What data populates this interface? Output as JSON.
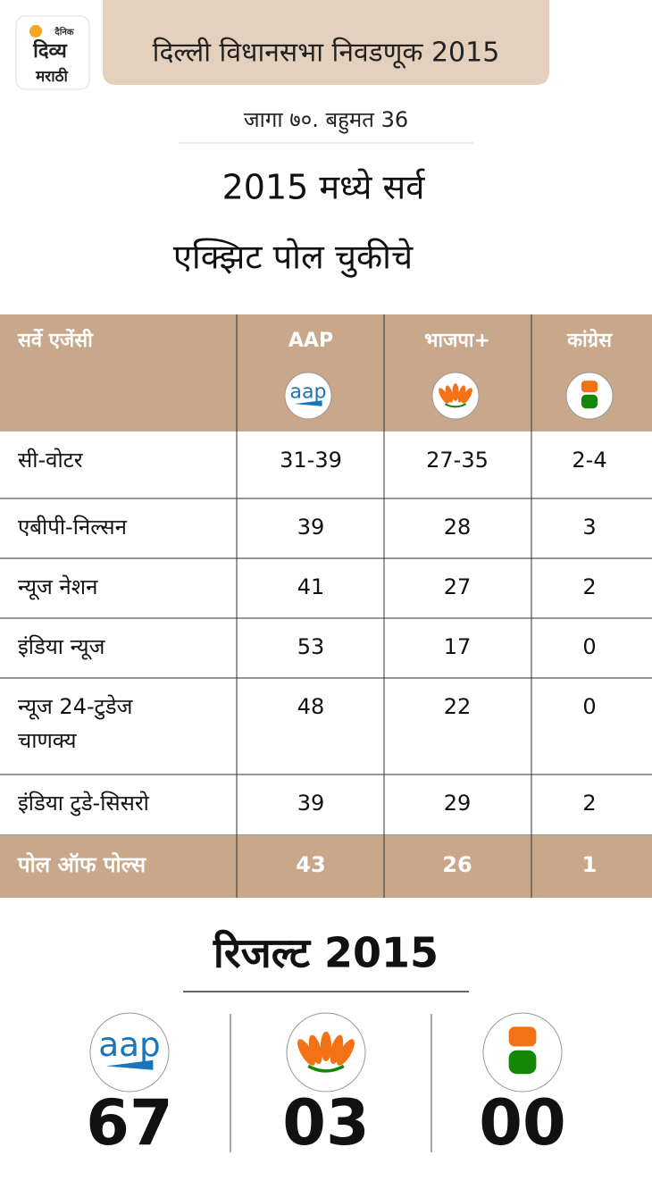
{
  "logo": {
    "small": "दैनिक",
    "line1": "दिव्य",
    "line2": "मराठी"
  },
  "header": {
    "title": "दिल्ली विधानसभा निवडणूक 2015",
    "subtitle": "जागा ७०. बहुमत 36",
    "headline": [
      "2015 मध्ये सर्व",
      "एक्झिट पोल चुकीचे"
    ]
  },
  "table": {
    "columns": [
      "सर्वे एजेंसी",
      "AAP",
      "भाजपा+",
      "कांग्रेस"
    ],
    "aap_logo_text": "aap",
    "rows": [
      [
        "सी-वोटर",
        "31-39",
        "27-35",
        "2-4"
      ],
      [
        "एबीपी-निल्सन",
        "39",
        "28",
        "3"
      ],
      [
        "न्यूज नेशन",
        "41",
        "27",
        "2"
      ],
      [
        "इंडिया न्यूज",
        "53",
        "17",
        "0"
      ],
      [
        "न्यूज 24-टुडेज चाणक्य",
        "48",
        "22",
        "0"
      ],
      [
        "इंडिया टुडे-सिसरो",
        "39",
        "29",
        "2"
      ]
    ],
    "footer": [
      "पोल ऑफ पोल्स",
      "43",
      "26",
      "1"
    ]
  },
  "result": {
    "title": "रिजल्ट 2015",
    "values": [
      "67",
      "03",
      "00"
    ]
  }
}
